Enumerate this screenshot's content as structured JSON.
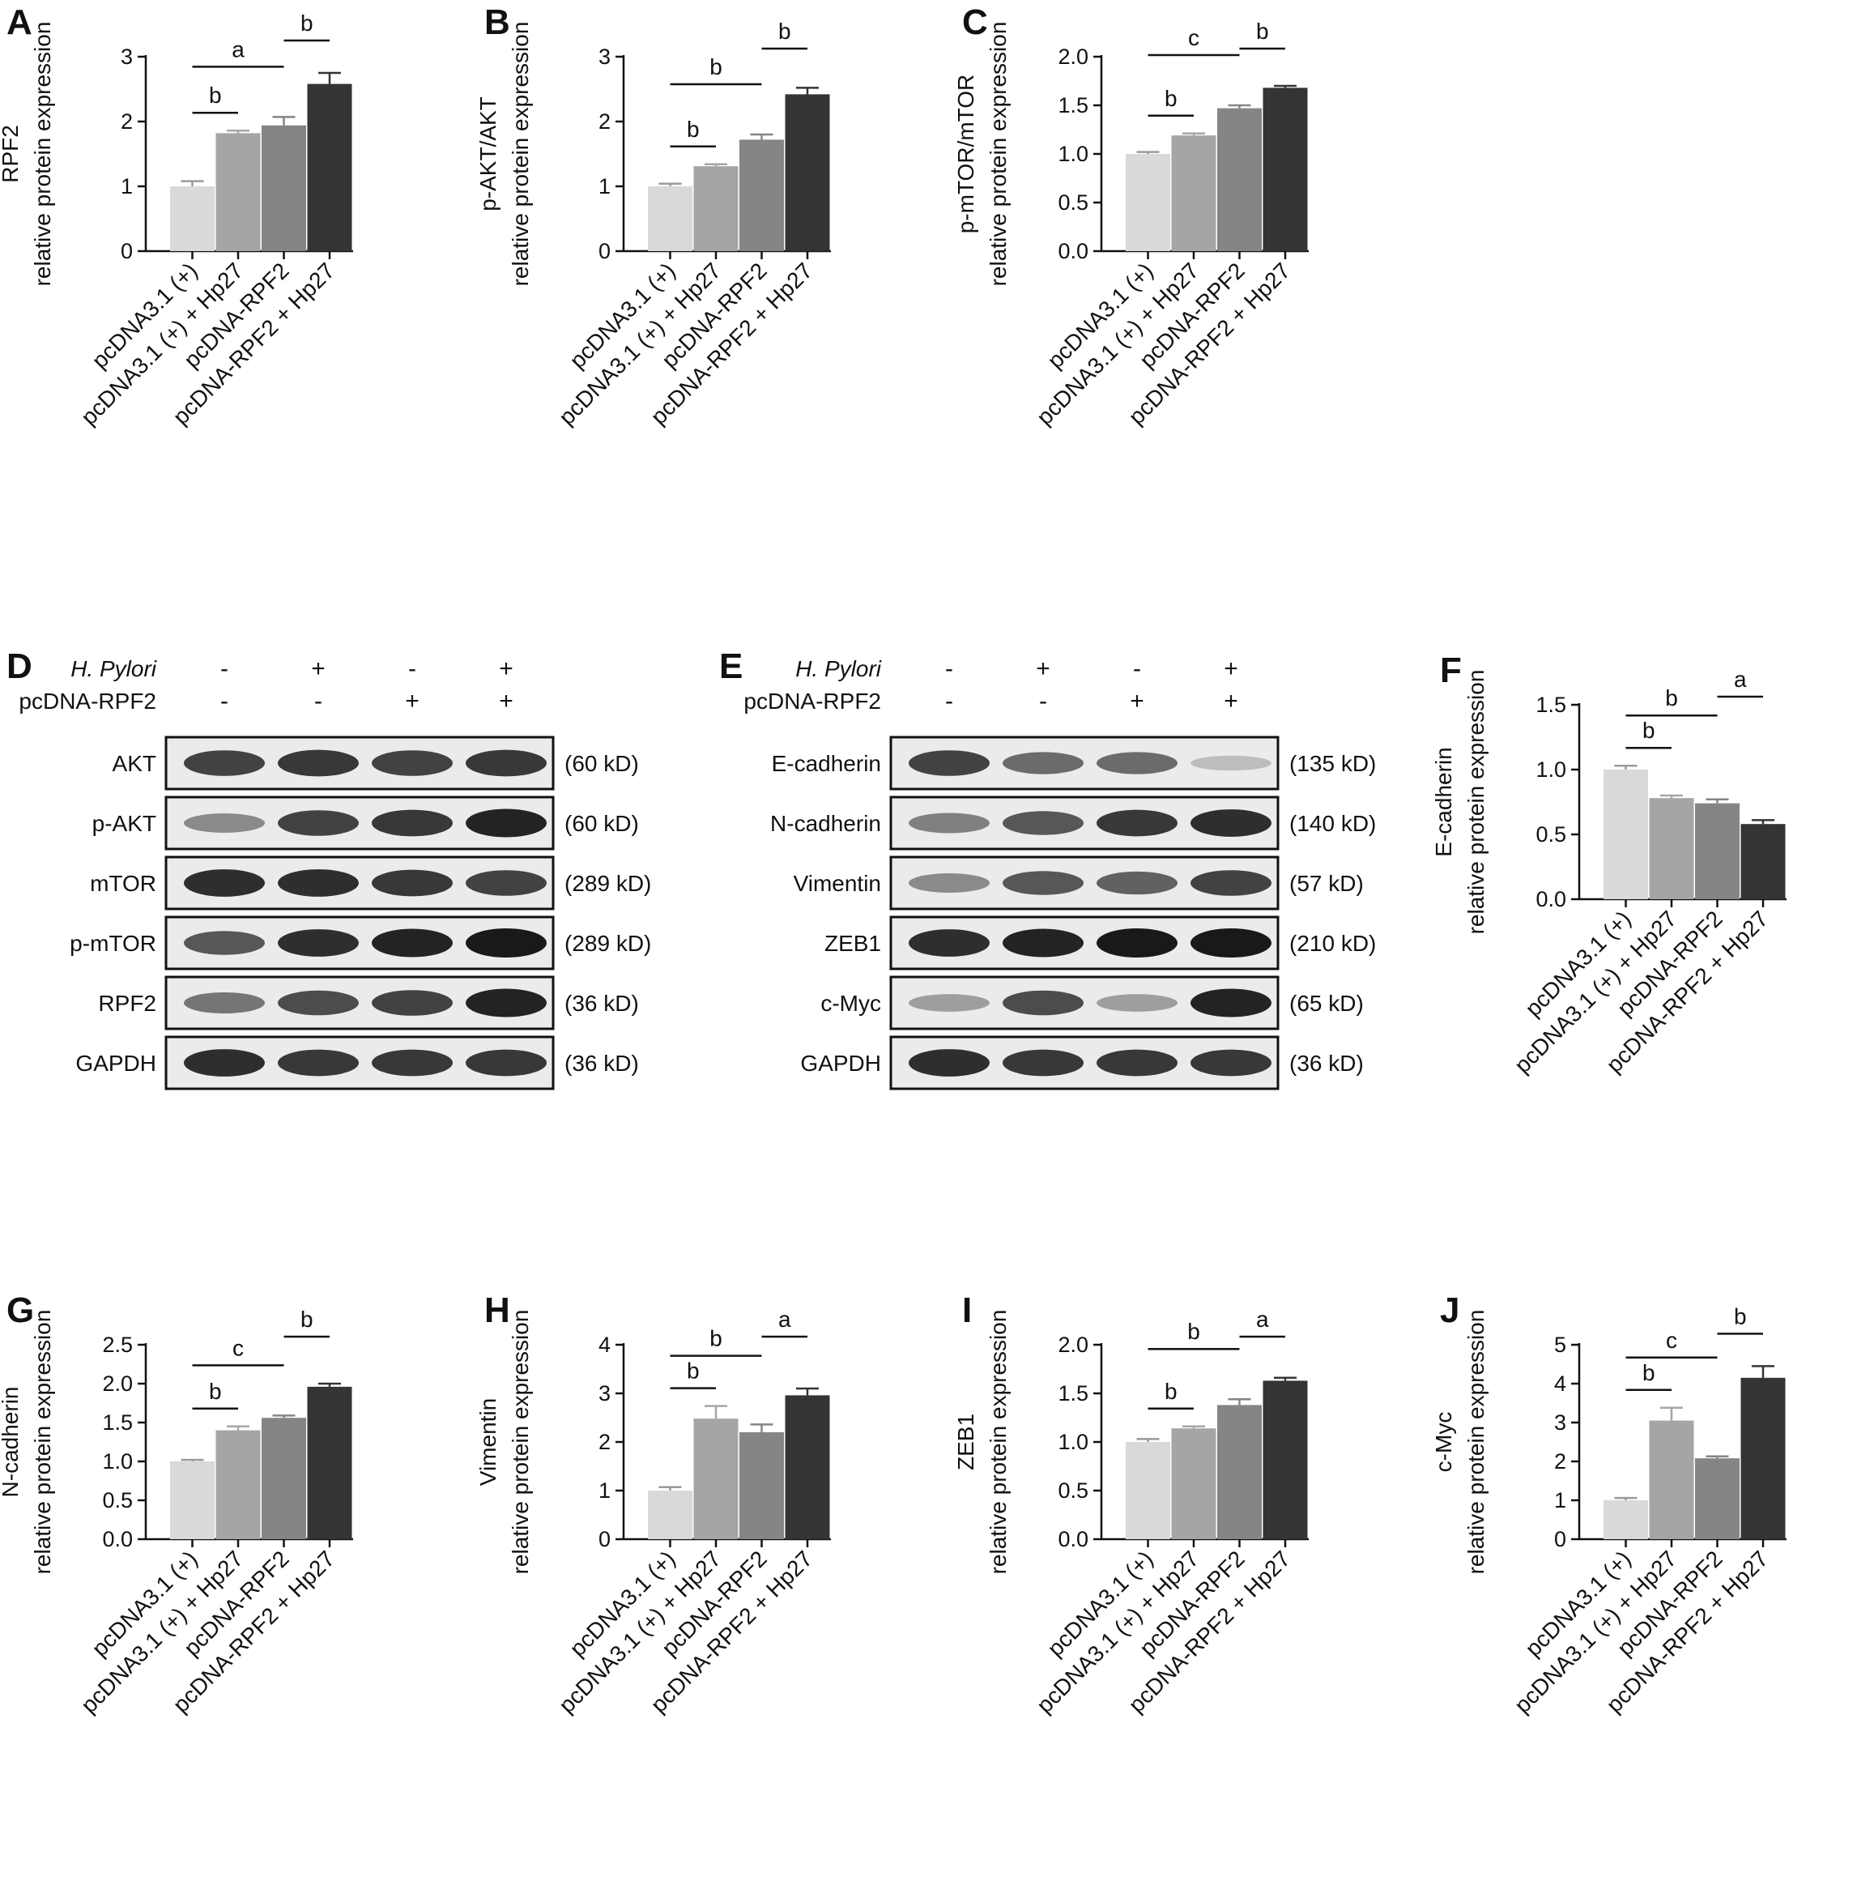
{
  "colors": {
    "bar_fills": [
      "#d9d9d9",
      "#a5a5a8",
      "#858585",
      "#343434"
    ],
    "axis": "#111111"
  },
  "groups": [
    "pcDNA3.1 (+)",
    "pcDNA3.1 (+) + Hp27",
    "pcDNA-RPF2",
    "pcDNA-RPF2 + Hp27"
  ],
  "chart_data": [
    {
      "panel": "A",
      "type": "bar",
      "ylabel": [
        "RPF2",
        "relative protein expression"
      ],
      "categories": [
        "pcDNA3.1 (+)",
        "pcDNA3.1 (+) + Hp27",
        "pcDNA-RPF2",
        "pcDNA-RPF2 + Hp27"
      ],
      "values": [
        1.0,
        1.82,
        1.94,
        2.58
      ],
      "errors": [
        0.08,
        0.04,
        0.13,
        0.17
      ],
      "ylim": [
        0,
        3
      ],
      "yticks": [
        "0",
        "1",
        "2",
        "3"
      ],
      "significance": [
        {
          "from": 0,
          "to": 1,
          "label": "b"
        },
        {
          "from": 0,
          "to": 2,
          "label": "a"
        },
        {
          "from": 2,
          "to": 3,
          "label": "b"
        }
      ]
    },
    {
      "panel": "B",
      "type": "bar",
      "ylabel": [
        "p-AKT/AKT",
        "relative protein expression"
      ],
      "categories": [
        "pcDNA3.1 (+)",
        "pcDNA3.1 (+) + Hp27",
        "pcDNA-RPF2",
        "pcDNA-RPF2 + Hp27"
      ],
      "values": [
        1.0,
        1.31,
        1.72,
        2.42
      ],
      "errors": [
        0.04,
        0.03,
        0.08,
        0.1
      ],
      "ylim": [
        0,
        3
      ],
      "yticks": [
        "0",
        "1",
        "2",
        "3"
      ],
      "significance": [
        {
          "from": 0,
          "to": 1,
          "label": "b"
        },
        {
          "from": 0,
          "to": 2,
          "label": "b"
        },
        {
          "from": 2,
          "to": 3,
          "label": "b"
        }
      ]
    },
    {
      "panel": "C",
      "type": "bar",
      "ylabel": [
        "p-mTOR/mTOR",
        "relative protein expression"
      ],
      "categories": [
        "pcDNA3.1 (+)",
        "pcDNA3.1 (+) + Hp27",
        "pcDNA-RPF2",
        "pcDNA-RPF2 + Hp27"
      ],
      "values": [
        1.0,
        1.19,
        1.47,
        1.68
      ],
      "errors": [
        0.02,
        0.02,
        0.03,
        0.02
      ],
      "ylim": [
        0,
        2.0
      ],
      "yticks": [
        "0.0",
        "0.5",
        "1.0",
        "1.5",
        "2.0"
      ],
      "significance": [
        {
          "from": 0,
          "to": 1,
          "label": "b"
        },
        {
          "from": 0,
          "to": 2,
          "label": "c"
        },
        {
          "from": 2,
          "to": 3,
          "label": "b"
        }
      ]
    },
    {
      "panel": "F",
      "type": "bar",
      "ylabel": [
        "E-cadherin",
        "relative protein expression"
      ],
      "categories": [
        "pcDNA3.1 (+)",
        "pcDNA3.1 (+) + Hp27",
        "pcDNA-RPF2",
        "pcDNA-RPF2 + Hp27"
      ],
      "values": [
        1.0,
        0.78,
        0.74,
        0.58
      ],
      "errors": [
        0.03,
        0.02,
        0.03,
        0.03
      ],
      "ylim": [
        0,
        1.5
      ],
      "yticks": [
        "0.0",
        "0.5",
        "1.0",
        "1.5"
      ],
      "significance": [
        {
          "from": 0,
          "to": 1,
          "label": "b"
        },
        {
          "from": 0,
          "to": 2,
          "label": "b"
        },
        {
          "from": 2,
          "to": 3,
          "label": "a"
        }
      ]
    },
    {
      "panel": "G",
      "type": "bar",
      "ylabel": [
        "N-cadherin",
        "relative protein expression"
      ],
      "categories": [
        "pcDNA3.1 (+)",
        "pcDNA3.1 (+) + Hp27",
        "pcDNA-RPF2",
        "pcDNA-RPF2 + Hp27"
      ],
      "values": [
        1.0,
        1.4,
        1.56,
        1.96
      ],
      "errors": [
        0.02,
        0.05,
        0.03,
        0.04
      ],
      "ylim": [
        0,
        2.5
      ],
      "yticks": [
        "0.0",
        "0.5",
        "1.0",
        "1.5",
        "2.0",
        "2.5"
      ],
      "significance": [
        {
          "from": 0,
          "to": 1,
          "label": "b"
        },
        {
          "from": 0,
          "to": 2,
          "label": "c"
        },
        {
          "from": 2,
          "to": 3,
          "label": "b"
        }
      ]
    },
    {
      "panel": "H",
      "type": "bar",
      "ylabel": [
        "Vimentin",
        "relative protein expression"
      ],
      "categories": [
        "pcDNA3.1 (+)",
        "pcDNA3.1 (+) + Hp27",
        "pcDNA-RPF2",
        "pcDNA-RPF2 + Hp27"
      ],
      "values": [
        1.0,
        2.48,
        2.2,
        2.96
      ],
      "errors": [
        0.07,
        0.26,
        0.16,
        0.14
      ],
      "ylim": [
        0,
        4
      ],
      "yticks": [
        "0",
        "1",
        "2",
        "3",
        "4"
      ],
      "significance": [
        {
          "from": 0,
          "to": 1,
          "label": "b"
        },
        {
          "from": 0,
          "to": 2,
          "label": "b"
        },
        {
          "from": 2,
          "to": 3,
          "label": "a"
        }
      ]
    },
    {
      "panel": "I",
      "type": "bar",
      "ylabel": [
        "ZEB1",
        "relative protein expression"
      ],
      "categories": [
        "pcDNA3.1 (+)",
        "pcDNA3.1 (+) + Hp27",
        "pcDNA-RPF2",
        "pcDNA-RPF2 + Hp27"
      ],
      "values": [
        1.0,
        1.14,
        1.38,
        1.63
      ],
      "errors": [
        0.03,
        0.02,
        0.06,
        0.03
      ],
      "ylim": [
        0,
        2.0
      ],
      "yticks": [
        "0.0",
        "0.5",
        "1.0",
        "1.5",
        "2.0"
      ],
      "significance": [
        {
          "from": 0,
          "to": 1,
          "label": "b"
        },
        {
          "from": 0,
          "to": 2,
          "label": "b"
        },
        {
          "from": 2,
          "to": 3,
          "label": "a"
        }
      ]
    },
    {
      "panel": "J",
      "type": "bar",
      "ylabel": [
        "c-Myc",
        "relative protein expression"
      ],
      "categories": [
        "pcDNA3.1 (+)",
        "pcDNA3.1 (+) + Hp27",
        "pcDNA-RPF2",
        "pcDNA-RPF2 + Hp27"
      ],
      "values": [
        1.0,
        3.05,
        2.08,
        4.15
      ],
      "errors": [
        0.06,
        0.33,
        0.05,
        0.3
      ],
      "ylim": [
        0,
        5
      ],
      "yticks": [
        "0",
        "1",
        "2",
        "3",
        "4",
        "5"
      ],
      "significance": [
        {
          "from": 0,
          "to": 1,
          "label": "b"
        },
        {
          "from": 0,
          "to": 2,
          "label": "c"
        },
        {
          "from": 2,
          "to": 3,
          "label": "b"
        }
      ]
    }
  ],
  "blots": [
    {
      "panel": "D",
      "conditions": [
        {
          "label": "H. Pylori",
          "italic": true,
          "signs": [
            "-",
            "+",
            "-",
            "+"
          ]
        },
        {
          "label": "pcDNA-RPF2",
          "italic": false,
          "signs": [
            "-",
            "-",
            "+",
            "+"
          ]
        }
      ],
      "rows": [
        {
          "protein": "AKT",
          "mw": "(60 kD)",
          "intensity": [
            0.8,
            0.85,
            0.8,
            0.85
          ]
        },
        {
          "protein": "p-AKT",
          "mw": "(60 kD)",
          "intensity": [
            0.45,
            0.8,
            0.85,
            0.95
          ]
        },
        {
          "protein": "mTOR",
          "mw": "(289 kD)",
          "intensity": [
            0.9,
            0.9,
            0.85,
            0.8
          ]
        },
        {
          "protein": "p-mTOR",
          "mw": "(289 kD)",
          "intensity": [
            0.7,
            0.9,
            0.95,
            1.0
          ]
        },
        {
          "protein": "RPF2",
          "mw": "(36 kD)",
          "intensity": [
            0.55,
            0.75,
            0.8,
            0.95
          ]
        },
        {
          "protein": "GAPDH",
          "mw": "(36 kD)",
          "intensity": [
            0.9,
            0.85,
            0.85,
            0.85
          ]
        }
      ]
    },
    {
      "panel": "E",
      "conditions": [
        {
          "label": "H. Pylori",
          "italic": true,
          "signs": [
            "-",
            "+",
            "-",
            "+"
          ]
        },
        {
          "label": "pcDNA-RPF2",
          "italic": false,
          "signs": [
            "-",
            "-",
            "+",
            "+"
          ]
        }
      ],
      "rows": [
        {
          "protein": "E-cadherin",
          "mw": "(135 kD)",
          "intensity": [
            0.8,
            0.6,
            0.6,
            0.2
          ]
        },
        {
          "protein": "N-cadherin",
          "mw": "(140 kD)",
          "intensity": [
            0.5,
            0.7,
            0.85,
            0.9
          ]
        },
        {
          "protein": "Vimentin",
          "mw": "(57 kD)",
          "intensity": [
            0.45,
            0.7,
            0.65,
            0.8
          ]
        },
        {
          "protein": "ZEB1",
          "mw": "(210 kD)",
          "intensity": [
            0.9,
            0.95,
            1.0,
            1.0
          ]
        },
        {
          "protein": "c-Myc",
          "mw": "(65 kD)",
          "intensity": [
            0.35,
            0.75,
            0.35,
            0.95
          ]
        },
        {
          "protein": "GAPDH",
          "mw": "(36 kD)",
          "intensity": [
            0.9,
            0.85,
            0.85,
            0.85
          ]
        }
      ]
    }
  ]
}
